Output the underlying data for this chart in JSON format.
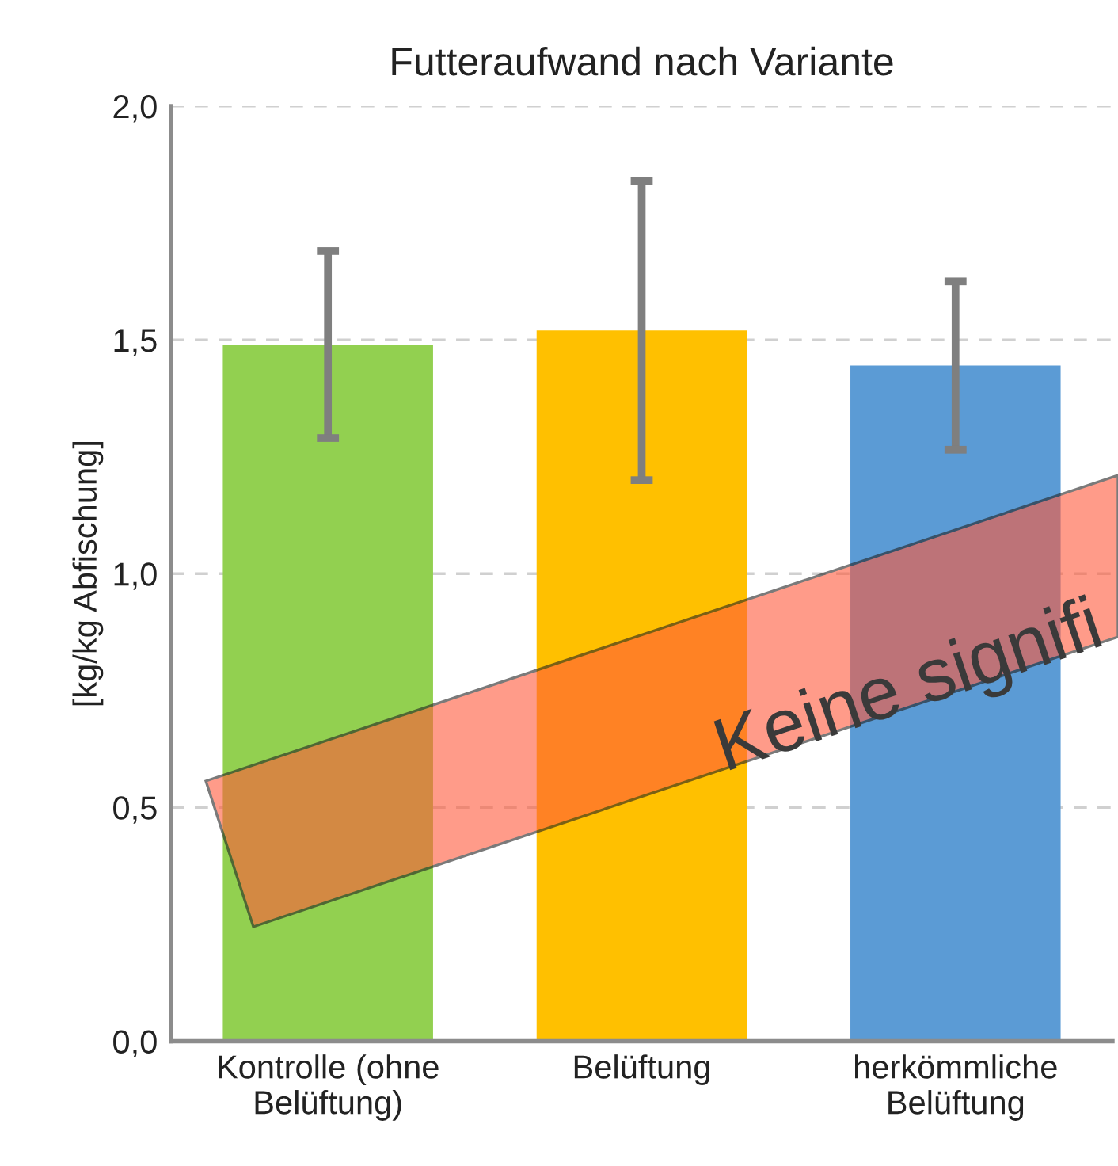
{
  "chart_data": {
    "type": "bar",
    "title": "Futteraufwand nach Variante",
    "ylabel": "[kg/kg Abfischung]",
    "categories": [
      "Kontrolle (ohne\nBelüftung)",
      "Belüftung",
      "herkömmliche\nBelüftung"
    ],
    "values": [
      1.49,
      1.52,
      1.445
    ],
    "errors": [
      0.2,
      0.32,
      0.18
    ],
    "colors": [
      "#92d050",
      "#ffc000",
      "#5b9bd5"
    ],
    "ylim": [
      0,
      2
    ],
    "yticks": [
      {
        "value": 0,
        "label": "0,0"
      },
      {
        "value": 0.5,
        "label": "0,5"
      },
      {
        "value": 1,
        "label": "1,0"
      },
      {
        "value": 1.5,
        "label": "1,5"
      },
      {
        "value": 2,
        "label": "2,0"
      }
    ],
    "grid": "y",
    "annotations": [
      "Keine signifi"
    ]
  }
}
